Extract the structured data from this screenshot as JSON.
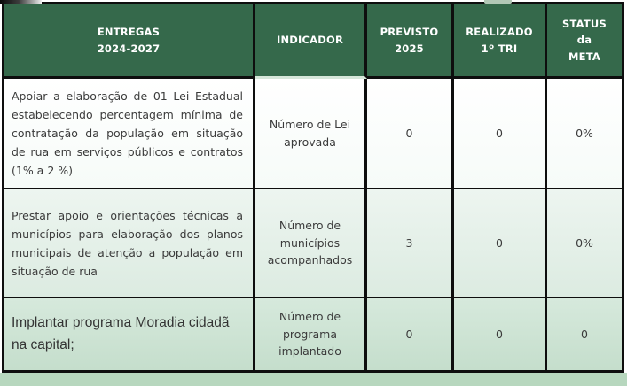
{
  "colors": {
    "header_green": "#35694B",
    "border_black": "#0e0e0e",
    "row2_tint": "#e4efe8",
    "row3_tint": "#cde3d4",
    "bottom_strip_green": "#b7d7be"
  },
  "table": {
    "columns": [
      {
        "key": "entrega",
        "label": "ENTREGAS\n2024-2027"
      },
      {
        "key": "indicador",
        "label": "INDICADOR"
      },
      {
        "key": "previsto",
        "label": "PREVISTO\n2025"
      },
      {
        "key": "realizado",
        "label": "REALIZADO\n1º TRI"
      },
      {
        "key": "status",
        "label": "STATUS\nda\nMETA"
      }
    ],
    "rows": [
      {
        "entrega": "Apoiar a elaboração de 01 Lei Estadual estabelecendo percentagem mínima de contratação da população em situação de rua em serviços públicos e contratos (1% a 2 %)",
        "indicador": "Número de Lei aprovada",
        "previsto": "0",
        "realizado": "0",
        "status": "0%"
      },
      {
        "entrega": "Prestar apoio e orientações técnicas a municípios para elaboração dos planos municipais de atenção a população em situação de rua",
        "indicador": "Número de municípios acompanhados",
        "previsto": "3",
        "realizado": "0",
        "status": "0%"
      },
      {
        "entrega": "Implantar programa Moradia cidadã na capital;",
        "indicador": "Número de programa implantado",
        "previsto": "0",
        "realizado": "0",
        "status": "0"
      }
    ]
  }
}
